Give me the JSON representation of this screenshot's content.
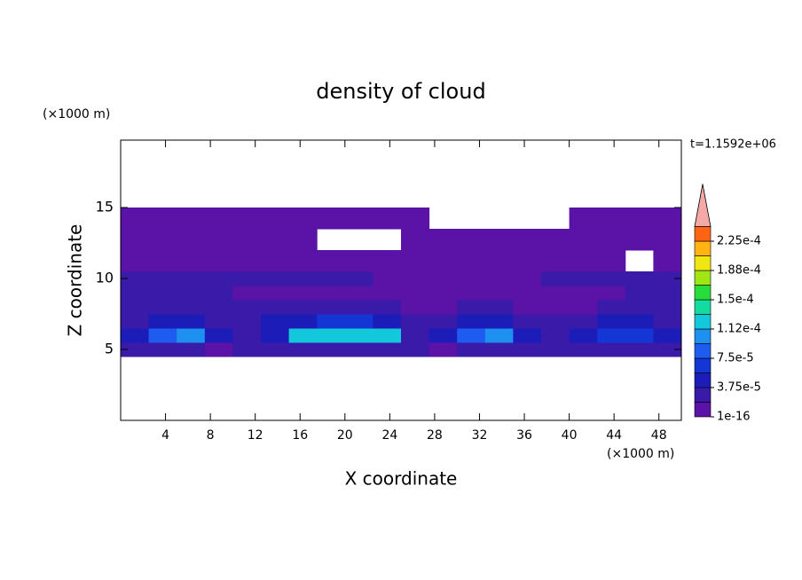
{
  "chart_data": {
    "type": "contour",
    "title": "density of cloud",
    "xlabel": "X coordinate",
    "ylabel": "Z coordinate",
    "xunit": "(×1000 m)",
    "yunit": "(×1000 m)",
    "annotation": "t=1.1592e+06",
    "xlim": [
      0,
      50
    ],
    "ylim": [
      0,
      19.75
    ],
    "xticks": [
      4,
      8,
      12,
      16,
      20,
      24,
      28,
      32,
      36,
      40,
      44,
      48
    ],
    "yticks": [
      5,
      10,
      15
    ],
    "xbins": [
      0,
      2.5,
      5,
      7.5,
      10,
      12.5,
      15,
      17.5,
      20,
      22.5,
      25,
      27.5,
      30,
      32.5,
      35,
      37.5,
      40,
      42.5,
      45,
      47.5,
      50
    ],
    "ybins": [
      4.5,
      5.5,
      6.5,
      7.5,
      8.5,
      9.5,
      10.5,
      12,
      13.5,
      15
    ],
    "values": [
      [
        2e-05,
        2e-05,
        2e-05,
        1e-16,
        2e-05,
        2e-05,
        2e-05,
        2e-05,
        2e-05,
        2e-05,
        2e-05,
        1e-16,
        2e-05,
        2e-05,
        2e-05,
        2e-05,
        2e-05,
        2e-05,
        2e-05,
        2e-05
      ],
      [
        4e-05,
        8e-05,
        0.0001,
        4e-05,
        2e-05,
        4e-05,
        0.00012,
        0.00012,
        0.00012,
        0.00012,
        2e-05,
        4e-05,
        8e-05,
        0.0001,
        4e-05,
        2e-05,
        4e-05,
        6e-05,
        6e-05,
        4e-05
      ],
      [
        2e-05,
        4e-05,
        4e-05,
        2e-05,
        2e-05,
        4e-05,
        4e-05,
        6e-05,
        6e-05,
        4e-05,
        2e-05,
        2e-05,
        4e-05,
        4e-05,
        2e-05,
        2e-05,
        2e-05,
        4e-05,
        4e-05,
        2e-05
      ],
      [
        2e-05,
        2e-05,
        2e-05,
        2e-05,
        2e-05,
        2e-05,
        2e-05,
        2e-05,
        2e-05,
        2e-05,
        1e-16,
        1e-16,
        2e-05,
        2e-05,
        1e-16,
        1e-16,
        1e-16,
        2e-05,
        2e-05,
        2e-05
      ],
      [
        2e-05,
        2e-05,
        2e-05,
        2e-05,
        1e-16,
        1e-16,
        1e-16,
        1e-16,
        1e-16,
        1e-16,
        1e-16,
        1e-16,
        1e-16,
        1e-16,
        1e-16,
        1e-16,
        1e-16,
        1e-16,
        2e-05,
        2e-05
      ],
      [
        2e-05,
        2e-05,
        2e-05,
        2e-05,
        2e-05,
        2e-05,
        2e-05,
        2e-05,
        2e-05,
        1e-16,
        1e-16,
        1e-16,
        1e-16,
        1e-16,
        1e-16,
        2e-05,
        2e-05,
        2e-05,
        2e-05,
        2e-05
      ],
      [
        1e-16,
        1e-16,
        1e-16,
        1e-16,
        1e-16,
        1e-16,
        1e-16,
        1e-16,
        1e-16,
        1e-16,
        1e-16,
        1e-16,
        1e-16,
        1e-16,
        1e-16,
        1e-16,
        1e-16,
        1e-16,
        null,
        1e-16
      ],
      [
        1e-16,
        1e-16,
        1e-16,
        1e-16,
        1e-16,
        1e-16,
        1e-16,
        null,
        null,
        null,
        1e-16,
        1e-16,
        1e-16,
        1e-16,
        1e-16,
        1e-16,
        1e-16,
        1e-16,
        1e-16,
        1e-16
      ],
      [
        1e-16,
        1e-16,
        1e-16,
        1e-16,
        1e-16,
        1e-16,
        1e-16,
        1e-16,
        1e-16,
        1e-16,
        1e-16,
        null,
        null,
        null,
        null,
        null,
        1e-16,
        1e-16,
        1e-16,
        1e-16
      ]
    ],
    "levels": [
      1e-16,
      1.875e-05,
      3.75e-05,
      5.625e-05,
      7.5e-05,
      9.375e-05,
      0.0001125,
      0.00013125,
      0.00015,
      0.00016875,
      0.0001875,
      0.00020625,
      0.000225,
      0.00024375
    ],
    "colors": [
      "#5b12a6",
      "#3a1aa8",
      "#1c1cb8",
      "#1436d4",
      "#1e5cf0",
      "#1e90f0",
      "#14c8dc",
      "#14dca0",
      "#28dc3c",
      "#a0e614",
      "#f0e614",
      "#ffb414",
      "#ff6414"
    ],
    "extend_color": "#f4a8a8",
    "colorbar_ticks": [
      {
        "value": 1e-16,
        "label": "1e-16"
      },
      {
        "value": 3.75e-05,
        "label": "3.75e-5"
      },
      {
        "value": 7.5e-05,
        "label": "7.5e-5"
      },
      {
        "value": 0.0001125,
        "label": "1.12e-4"
      },
      {
        "value": 0.00015,
        "label": "1.5e-4"
      },
      {
        "value": 0.0001875,
        "label": "1.88e-4"
      },
      {
        "value": 0.000225,
        "label": "2.25e-4"
      }
    ]
  }
}
